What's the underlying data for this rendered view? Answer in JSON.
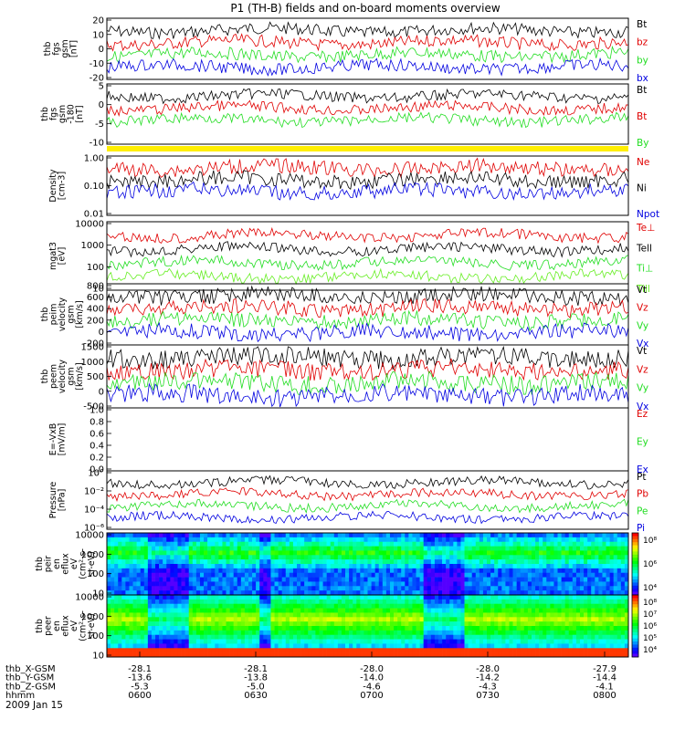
{
  "title": "P1 (TH-B) fields and on-board moments overview",
  "date_label": "2009 Jan 15",
  "footer": {
    "rows": [
      {
        "label": "thb_X-GSM",
        "values": [
          "-28.1",
          "-28.1",
          "-28.0",
          "-28.0",
          "-27.9"
        ]
      },
      {
        "label": "thb_Y-GSM",
        "values": [
          "-13.6",
          "-13.8",
          "-14.0",
          "-14.2",
          "-14.4"
        ]
      },
      {
        "label": "thb_Z-GSM",
        "values": [
          "-5.3",
          "-5.0",
          "-4.6",
          "-4.3",
          "-4.1"
        ]
      },
      {
        "label": "hhmm",
        "values": [
          "0600",
          "0630",
          "0700",
          "0730",
          "0800"
        ]
      }
    ]
  },
  "colors": {
    "black": "#000000",
    "red": "#e00000",
    "green": "#22dd22",
    "blue": "#0000e0",
    "bright_green": "#66ee22",
    "yellow_bar": "#ffee00"
  },
  "chart_data": [
    {
      "type": "line",
      "ylabel": [
        "thb",
        "fgs",
        "gsm",
        "[nT]"
      ],
      "yticks": [
        "20",
        "10",
        "0",
        "-10",
        "-20"
      ],
      "ylim": [
        -22,
        22
      ],
      "xlim": [
        "0600",
        "0800"
      ],
      "series": [
        {
          "name": "Bt",
          "color": "black"
        },
        {
          "name": "bz",
          "color": "red"
        },
        {
          "name": "by",
          "color": "green"
        },
        {
          "name": "bx",
          "color": "blue"
        }
      ]
    },
    {
      "type": "line",
      "ylabel": [
        "thb",
        "fgs",
        "gsm",
        "-180",
        "[nT]"
      ],
      "yticks": [
        "5",
        "0",
        "-5",
        "-10"
      ],
      "ylim": [
        -14,
        10
      ],
      "series": [
        {
          "name": "Bt",
          "color": "black"
        },
        {
          "name": "Bt",
          "color": "red"
        },
        {
          "name": "By",
          "color": "green"
        }
      ]
    },
    {
      "type": "line",
      "ylabel": [
        "Density",
        "[cm-3]"
      ],
      "yticks": [
        "1.00",
        "0.10",
        "0.01"
      ],
      "scale": "log",
      "series": [
        {
          "name": "Ne",
          "color": "red"
        },
        {
          "name": "Ni",
          "color": "black"
        },
        {
          "name": "Npot",
          "color": "blue"
        }
      ]
    },
    {
      "type": "line",
      "ylabel": [
        "mgat3",
        "[eV]"
      ],
      "yticks": [
        "10000",
        "1000",
        "100",
        "10"
      ],
      "scale": "log",
      "series": [
        {
          "name": "Te⊥",
          "color": "red"
        },
        {
          "name": "Tell",
          "color": "black"
        },
        {
          "name": "Ti⊥",
          "color": "green"
        },
        {
          "name": "Till",
          "color": "bright_green"
        }
      ]
    },
    {
      "type": "line",
      "ylabel": [
        "thb",
        "peim",
        "velocity",
        "gsm",
        "[km/s]"
      ],
      "yticks": [
        "800",
        "600",
        "400",
        "200",
        "0",
        "-200"
      ],
      "ylim": [
        -200,
        800
      ],
      "series": [
        {
          "name": "Vt",
          "color": "black"
        },
        {
          "name": "Vz",
          "color": "red"
        },
        {
          "name": "Vy",
          "color": "green"
        },
        {
          "name": "Vx",
          "color": "blue"
        }
      ]
    },
    {
      "type": "line",
      "ylabel": [
        "thb",
        "peem",
        "velocity",
        "gsm",
        "[km/s]"
      ],
      "yticks": [
        "1500",
        "1000",
        "500",
        "0",
        "-500"
      ],
      "ylim": [
        -700,
        1600
      ],
      "series": [
        {
          "name": "Vt",
          "color": "black"
        },
        {
          "name": "Vz",
          "color": "red"
        },
        {
          "name": "Vy",
          "color": "green"
        },
        {
          "name": "Vx",
          "color": "blue"
        }
      ]
    },
    {
      "type": "line",
      "ylabel": [
        "E=-VxB",
        "[mV/m]"
      ],
      "yticks": [
        "1.0",
        "0.8",
        "0.6",
        "0.4",
        "0.2",
        "0.0"
      ],
      "ylim": [
        0,
        1
      ],
      "series": [
        {
          "name": "Ez",
          "color": "red"
        },
        {
          "name": "Ey",
          "color": "green"
        },
        {
          "name": "Ex",
          "color": "blue"
        }
      ]
    },
    {
      "type": "line",
      "ylabel": [
        "Pressure",
        "[nPa]"
      ],
      "yticks": [
        "10°",
        "10⁻²",
        "10⁻⁴",
        "10⁻⁶"
      ],
      "scale": "log",
      "series": [
        {
          "name": "Pt",
          "color": "black"
        },
        {
          "name": "Pb",
          "color": "red"
        },
        {
          "name": "Pe",
          "color": "green"
        },
        {
          "name": "Pi",
          "color": "blue"
        }
      ]
    },
    {
      "type": "heatmap",
      "ylabel": [
        "thb",
        "peir",
        "en",
        "eflux",
        "eV",
        "(cm²-s-",
        "sr-eV)"
      ],
      "yticks": [
        "10000",
        "1000",
        "100",
        "10"
      ],
      "colorbar_ticks": [
        "10⁸",
        "10⁶",
        "10⁴"
      ]
    },
    {
      "type": "heatmap",
      "ylabel": [
        "thb",
        "peer",
        "en",
        "eflux",
        "eV",
        "(cm²-s-",
        "sr-eV)"
      ],
      "yticks": [
        "10000",
        "1000",
        "100",
        "10"
      ],
      "colorbar_ticks": [
        "10⁸",
        "10⁷",
        "10⁶",
        "10⁵",
        "10⁴"
      ]
    }
  ]
}
